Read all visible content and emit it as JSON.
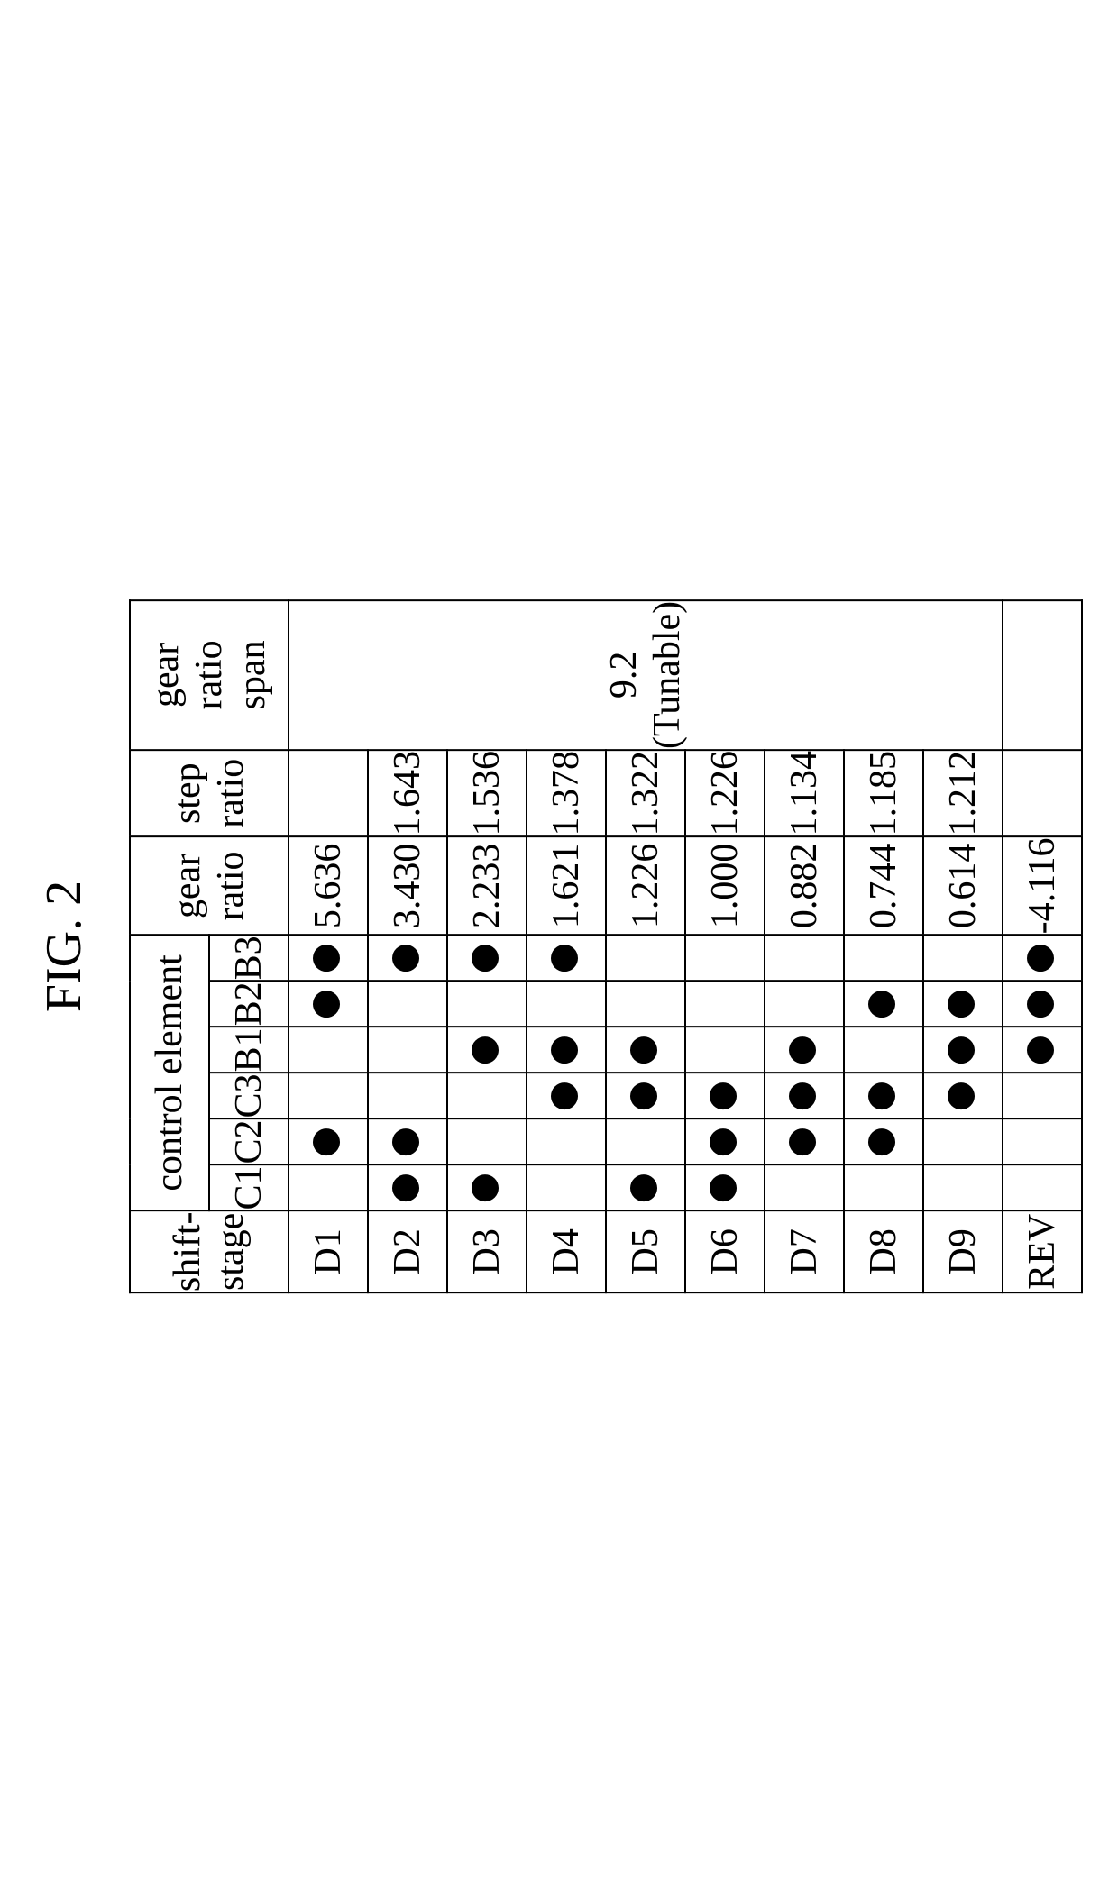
{
  "figure": {
    "caption": "FIG. 2",
    "text_color": "#000000",
    "background_color": "#ffffff",
    "border_color": "#000000",
    "dot_color": "#000000",
    "caption_fontsize_pt": 42,
    "cell_fontsize_pt": 32,
    "font_family": "Times New Roman",
    "headers": {
      "shift_stage": "shift-stage",
      "control_element": "control element",
      "gear_ratio": "gear ratio",
      "step_ratio": "step ratio",
      "gear_ratio_span": "gear\nratio span"
    },
    "control_labels": [
      "C1",
      "C2",
      "C3",
      "B1",
      "B2",
      "B3"
    ],
    "gear_ratio_span_value": "9.2\n(Tunable)",
    "rows": [
      {
        "stage": "D1",
        "ce": [
          0,
          1,
          0,
          0,
          1,
          1
        ],
        "gear_ratio": "5.636",
        "step_ratio": ""
      },
      {
        "stage": "D2",
        "ce": [
          1,
          1,
          0,
          0,
          0,
          1
        ],
        "gear_ratio": "3.430",
        "step_ratio": "1.643"
      },
      {
        "stage": "D3",
        "ce": [
          1,
          0,
          0,
          1,
          0,
          1
        ],
        "gear_ratio": "2.233",
        "step_ratio": "1.536"
      },
      {
        "stage": "D4",
        "ce": [
          0,
          0,
          1,
          1,
          0,
          1
        ],
        "gear_ratio": "1.621",
        "step_ratio": "1.378"
      },
      {
        "stage": "D5",
        "ce": [
          1,
          0,
          1,
          1,
          0,
          0
        ],
        "gear_ratio": "1.226",
        "step_ratio": "1.322"
      },
      {
        "stage": "D6",
        "ce": [
          1,
          1,
          1,
          0,
          0,
          0
        ],
        "gear_ratio": "1.000",
        "step_ratio": "1.226"
      },
      {
        "stage": "D7",
        "ce": [
          0,
          1,
          1,
          1,
          0,
          0
        ],
        "gear_ratio": "0.882",
        "step_ratio": "1.134"
      },
      {
        "stage": "D8",
        "ce": [
          0,
          1,
          1,
          0,
          1,
          0
        ],
        "gear_ratio": "0.744",
        "step_ratio": "1.185"
      },
      {
        "stage": "D9",
        "ce": [
          0,
          0,
          1,
          1,
          1,
          0
        ],
        "gear_ratio": "0.614",
        "step_ratio": "1.212"
      },
      {
        "stage": "REV",
        "ce": [
          0,
          0,
          0,
          1,
          1,
          1
        ],
        "gear_ratio": "-4.116",
        "step_ratio": ""
      }
    ]
  }
}
